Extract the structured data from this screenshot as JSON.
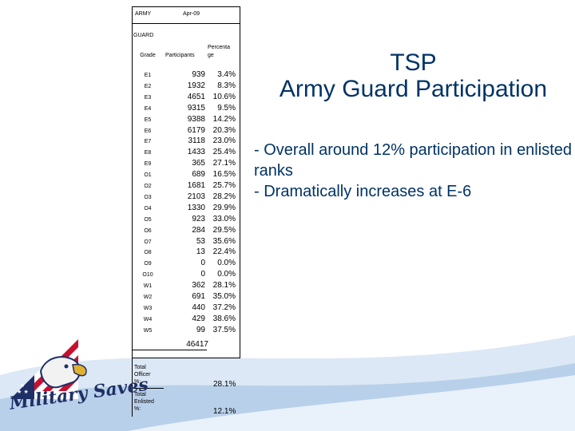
{
  "slide": {
    "title_line1": "TSP",
    "title_line2": "Army Guard Participation",
    "bullets": [
      "- Overall around 12% participation in enlisted ranks",
      "- Dramatically increases at E-6"
    ]
  },
  "table": {
    "header_army": "ARMY",
    "header_date": "Apr-09",
    "header_guard": "GUARD",
    "col_grade": "Grade",
    "col_participants": "Participants",
    "col_percentage_line1": "Percenta",
    "col_percentage_line2": "ge",
    "rows": [
      {
        "grade": "E1",
        "participants": "939",
        "percentage": "3.4%"
      },
      {
        "grade": "E2",
        "participants": "1932",
        "percentage": "8.3%"
      },
      {
        "grade": "E3",
        "participants": "4651",
        "percentage": "10.6%"
      },
      {
        "grade": "E4",
        "participants": "9315",
        "percentage": "9.5%"
      },
      {
        "grade": "E5",
        "participants": "9388",
        "percentage": "14.2%"
      },
      {
        "grade": "E6",
        "participants": "6179",
        "percentage": "20.3%"
      },
      {
        "grade": "E7",
        "participants": "3118",
        "percentage": "23.0%"
      },
      {
        "grade": "E8",
        "participants": "1433",
        "percentage": "25.4%"
      },
      {
        "grade": "E9",
        "participants": "365",
        "percentage": "27.1%"
      },
      {
        "grade": "O1",
        "participants": "689",
        "percentage": "16.5%"
      },
      {
        "grade": "O2",
        "participants": "1681",
        "percentage": "25.7%"
      },
      {
        "grade": "O3",
        "participants": "2103",
        "percentage": "28.2%"
      },
      {
        "grade": "O4",
        "participants": "1330",
        "percentage": "29.9%"
      },
      {
        "grade": "O5",
        "participants": "923",
        "percentage": "33.0%"
      },
      {
        "grade": "O6",
        "participants": "284",
        "percentage": "29.5%"
      },
      {
        "grade": "O7",
        "participants": "53",
        "percentage": "35.6%"
      },
      {
        "grade": "O8",
        "participants": "13",
        "percentage": "22.4%"
      },
      {
        "grade": "O9",
        "participants": "0",
        "percentage": "0.0%"
      },
      {
        "grade": "O10",
        "participants": "0",
        "percentage": "0.0%"
      },
      {
        "grade": "W1",
        "participants": "362",
        "percentage": "28.1%"
      },
      {
        "grade": "W2",
        "participants": "691",
        "percentage": "35.0%"
      },
      {
        "grade": "W3",
        "participants": "440",
        "percentage": "37.2%"
      },
      {
        "grade": "W4",
        "participants": "429",
        "percentage": "38.6%"
      },
      {
        "grade": "W5",
        "participants": "99",
        "percentage": "37.5%"
      }
    ],
    "total_participants": "46417",
    "officer_label": [
      "Total",
      "Officer",
      "%:"
    ],
    "officer_value": "28.1%",
    "enlisted_label": [
      "Total",
      "Enlisted",
      "%:"
    ],
    "enlisted_value": "12.1%"
  },
  "logo": {
    "text": "Military Saves",
    "icon": "eagle-flag-logo"
  },
  "colors": {
    "title": "#003366",
    "swoosh_light": "#dce8f5",
    "swoosh_mid": "#b9d0ea",
    "logo_red": "#c8102e",
    "logo_navy": "#1f2f66"
  }
}
